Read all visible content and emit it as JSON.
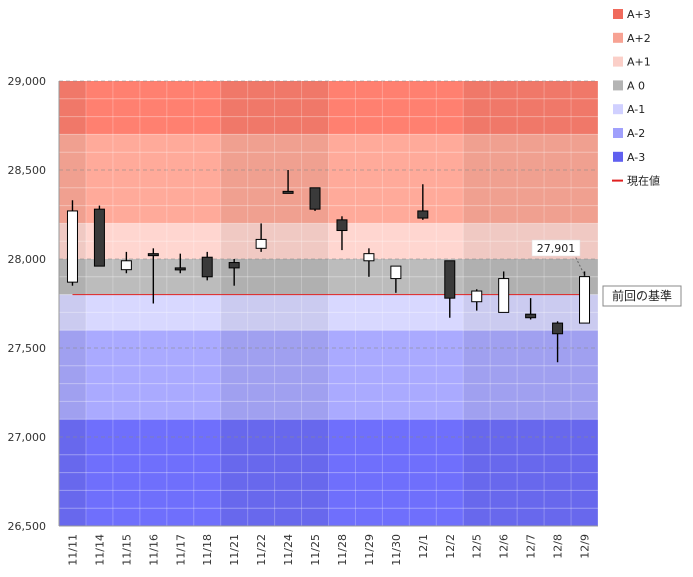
{
  "chart_data": {
    "type": "candlestick",
    "x": [
      "11/11",
      "11/14",
      "11/15",
      "11/16",
      "11/17",
      "11/18",
      "11/21",
      "11/22",
      "11/24",
      "11/25",
      "11/28",
      "11/29",
      "11/30",
      "12/1",
      "12/2",
      "12/5",
      "12/6",
      "12/7",
      "12/8",
      "12/9"
    ],
    "ohlc": [
      {
        "open": 27870,
        "high": 28330,
        "low": 27850,
        "close": 28270
      },
      {
        "open": 28280,
        "high": 28300,
        "low": 27960,
        "close": 27960
      },
      {
        "open": 27940,
        "high": 28040,
        "low": 27920,
        "close": 27990
      },
      {
        "open": 28030,
        "high": 28060,
        "low": 27750,
        "close": 28020
      },
      {
        "open": 27950,
        "high": 28030,
        "low": 27920,
        "close": 27940
      },
      {
        "open": 28010,
        "high": 28040,
        "low": 27880,
        "close": 27900
      },
      {
        "open": 27980,
        "high": 28000,
        "low": 27850,
        "close": 27950
      },
      {
        "open": 28060,
        "high": 28200,
        "low": 28040,
        "close": 28110
      },
      {
        "open": 28380,
        "high": 28500,
        "low": 28370,
        "close": 28370
      },
      {
        "open": 28400,
        "high": 28400,
        "low": 28270,
        "close": 28280
      },
      {
        "open": 28220,
        "high": 28240,
        "low": 28050,
        "close": 28160
      },
      {
        "open": 27990,
        "high": 28060,
        "low": 27900,
        "close": 28030
      },
      {
        "open": 27890,
        "high": 27960,
        "low": 27810,
        "close": 27960
      },
      {
        "open": 28270,
        "high": 28420,
        "low": 28220,
        "close": 28230
      },
      {
        "open": 27990,
        "high": 27990,
        "low": 27670,
        "close": 27780
      },
      {
        "open": 27760,
        "high": 27830,
        "low": 27710,
        "close": 27820
      },
      {
        "open": 27700,
        "high": 27930,
        "low": 27700,
        "close": 27890
      },
      {
        "open": 27690,
        "high": 27780,
        "low": 27660,
        "close": 27670
      },
      {
        "open": 27640,
        "high": 27650,
        "low": 27420,
        "close": 27580
      },
      {
        "open": 27640,
        "high": 27930,
        "low": 27640,
        "close": 27901
      }
    ],
    "ylim": [
      26500,
      29000
    ],
    "yticks": [
      "26,500",
      "27,000",
      "27,500",
      "28,000",
      "28,500",
      "29,000"
    ],
    "bands": [
      {
        "name": "A+3",
        "from": 28700,
        "to": 29000,
        "color": "#ff8070"
      },
      {
        "name": "A+2",
        "from": 28200,
        "to": 28700,
        "color": "#ffaa9a"
      },
      {
        "name": "A+1",
        "from": 28000,
        "to": 28200,
        "color": "#ffd6d0"
      },
      {
        "name": "A 0",
        "from": 27800,
        "to": 28000,
        "color": "#bcbcbc"
      },
      {
        "name": "A-1",
        "from": 27600,
        "to": 27800,
        "color": "#d8d8ff"
      },
      {
        "name": "A-2",
        "from": 27100,
        "to": 27600,
        "color": "#aaaaff"
      },
      {
        "name": "A-3",
        "from": 26500,
        "to": 27100,
        "color": "#6f6ffc"
      }
    ],
    "current_value": {
      "label": "現在値",
      "value": 27800,
      "color": "#e02020"
    },
    "callouts": {
      "last_close": "27,901",
      "previous_basis": "前回の基準"
    },
    "legend": [
      {
        "label": "A+3",
        "color": "#f06a5c"
      },
      {
        "label": "A+2",
        "color": "#f7a293"
      },
      {
        "label": "A+1",
        "color": "#fbcfc8"
      },
      {
        "label": "A 0",
        "color": "#b4b4b4"
      },
      {
        "label": "A-1",
        "color": "#d0d0ff"
      },
      {
        "label": "A-2",
        "color": "#a0a0fc"
      },
      {
        "label": "A-3",
        "color": "#6060f0"
      },
      {
        "label": "現在値",
        "color": "#e02020"
      }
    ],
    "legend_position": "right",
    "grid": true
  }
}
